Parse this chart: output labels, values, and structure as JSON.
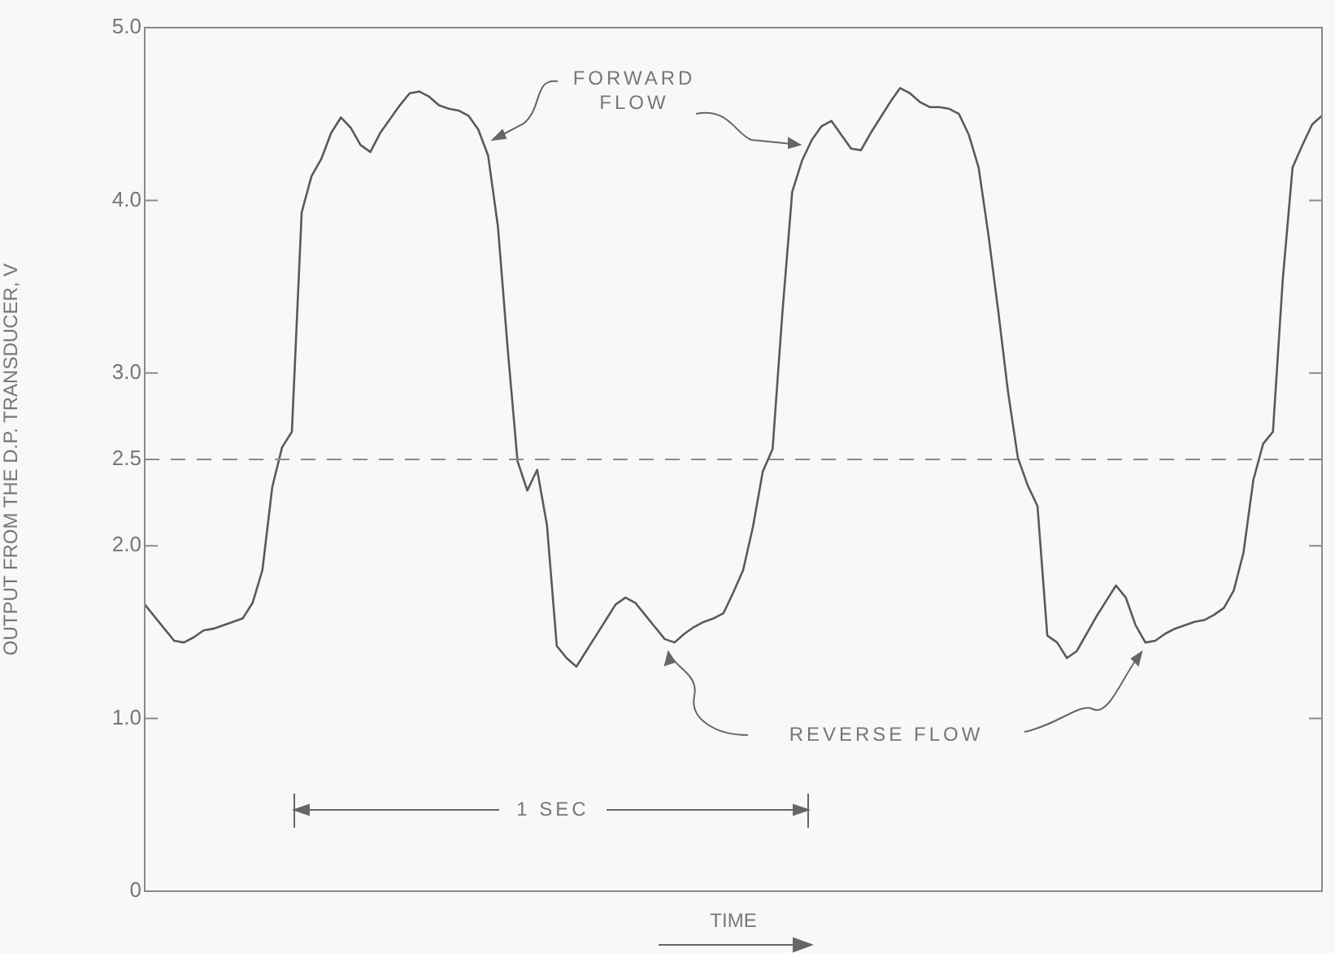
{
  "chart_data": {
    "type": "line",
    "xlabel": "TIME",
    "ylabel": "OUTPUT FROM THE D.P. TRANSDUCER, V",
    "categories": [
      null,
      null,
      null,
      null,
      null,
      null,
      null,
      null,
      null,
      null,
      null,
      null,
      null,
      null,
      null,
      null,
      null,
      null,
      null,
      null,
      null,
      null,
      null,
      null,
      null,
      null,
      null,
      null,
      null,
      null,
      null,
      null,
      null,
      null,
      null,
      null,
      null,
      null,
      null,
      null,
      null,
      null,
      null,
      null,
      null,
      null,
      null,
      null,
      null,
      null,
      null,
      null,
      null,
      null,
      null,
      null,
      null,
      null,
      null,
      null,
      null,
      null,
      null,
      null,
      null,
      null,
      null,
      null,
      null,
      null,
      null,
      null,
      null,
      null,
      null,
      null,
      null,
      null,
      null,
      null,
      null,
      null,
      null,
      null,
      null,
      null,
      null,
      null,
      null,
      null,
      null,
      null,
      null,
      null,
      null,
      null,
      null,
      null,
      null,
      null,
      null,
      null,
      null,
      null,
      null,
      null,
      null,
      null,
      null,
      null,
      null,
      null,
      null,
      null,
      null,
      null,
      null,
      null,
      null,
      null,
      null
    ],
    "series": [
      {
        "color": "#5a5a5a",
        "values": [
          1.66,
          1.59,
          1.52,
          1.45,
          1.44,
          1.47,
          1.51,
          1.52,
          1.54,
          1.56,
          1.58,
          1.67,
          1.86,
          2.34,
          2.57,
          2.66,
          3.93,
          4.14,
          4.24,
          4.39,
          4.48,
          4.42,
          4.32,
          4.28,
          4.39,
          4.47,
          4.55,
          4.62,
          4.63,
          4.6,
          4.55,
          4.53,
          4.52,
          4.49,
          4.41,
          4.26,
          3.85,
          3.14,
          2.49,
          2.32,
          2.44,
          2.12,
          1.42,
          1.35,
          1.3,
          1.39,
          1.48,
          1.57,
          1.66,
          1.7,
          1.67,
          1.6,
          1.53,
          1.46,
          1.44,
          1.49,
          1.53,
          1.56,
          1.58,
          1.61,
          1.73,
          1.86,
          2.11,
          2.43,
          2.56,
          3.35,
          4.05,
          4.23,
          4.35,
          4.43,
          4.46,
          4.38,
          4.3,
          4.29,
          4.39,
          4.48,
          4.57,
          4.65,
          4.62,
          4.57,
          4.54,
          4.54,
          4.53,
          4.5,
          4.38,
          4.19,
          3.8,
          3.36,
          2.89,
          2.51,
          2.35,
          2.23,
          1.48,
          1.44,
          1.35,
          1.39,
          1.49,
          1.59,
          1.68,
          1.77,
          1.7,
          1.54,
          1.44,
          1.45,
          1.49,
          1.52,
          1.54,
          1.56,
          1.57,
          1.6,
          1.64,
          1.74,
          1.96,
          2.38,
          2.59,
          2.66,
          3.54,
          4.19,
          4.32,
          4.44,
          4.49
        ]
      }
    ],
    "ylim": [
      0,
      5
    ],
    "yticks": [
      0,
      {
        "value": 1,
        "label": "1.0"
      },
      {
        "value": 2,
        "label": "2.0"
      },
      2.5,
      {
        "value": 3,
        "label": "3.0"
      },
      {
        "value": 4,
        "label": "4.0"
      },
      {
        "value": 5,
        "label": "5.0"
      }
    ],
    "ref_lines": [
      {
        "axis": "y",
        "value": 2.5,
        "line_style": "dashed",
        "color": "#8a8a8a"
      }
    ],
    "annotations": [
      "FORWARD FLOW",
      "REVERSE FLOW",
      "1 SEC"
    ],
    "tick_labels": "y",
    "marker": "none",
    "line_style": "solid",
    "grid": false,
    "legend": false
  }
}
